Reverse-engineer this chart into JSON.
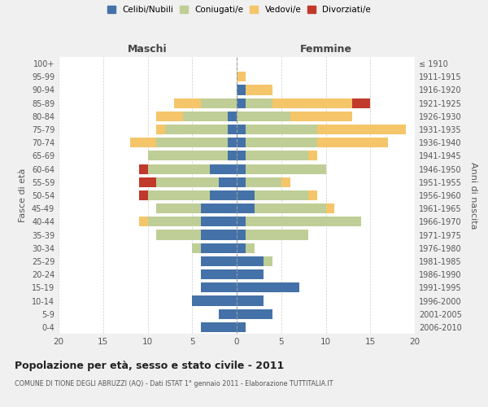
{
  "age_groups": [
    "0-4",
    "5-9",
    "10-14",
    "15-19",
    "20-24",
    "25-29",
    "30-34",
    "35-39",
    "40-44",
    "45-49",
    "50-54",
    "55-59",
    "60-64",
    "65-69",
    "70-74",
    "75-79",
    "80-84",
    "85-89",
    "90-94",
    "95-99",
    "100+"
  ],
  "birth_years": [
    "2006-2010",
    "2001-2005",
    "1996-2000",
    "1991-1995",
    "1986-1990",
    "1981-1985",
    "1976-1980",
    "1971-1975",
    "1966-1970",
    "1961-1965",
    "1956-1960",
    "1951-1955",
    "1946-1950",
    "1941-1945",
    "1936-1940",
    "1931-1935",
    "1926-1930",
    "1921-1925",
    "1916-1920",
    "1911-1915",
    "≤ 1910"
  ],
  "maschi": {
    "celibi": [
      4,
      2,
      5,
      4,
      4,
      4,
      4,
      4,
      4,
      4,
      3,
      2,
      3,
      1,
      1,
      1,
      1,
      0,
      0,
      0,
      0
    ],
    "coniugati": [
      0,
      0,
      0,
      0,
      0,
      0,
      1,
      5,
      6,
      5,
      7,
      7,
      7,
      9,
      8,
      7,
      5,
      4,
      0,
      0,
      0
    ],
    "vedovi": [
      0,
      0,
      0,
      0,
      0,
      0,
      0,
      0,
      1,
      0,
      0,
      0,
      0,
      0,
      3,
      1,
      3,
      3,
      0,
      0,
      0
    ],
    "divorziati": [
      0,
      0,
      0,
      0,
      0,
      0,
      0,
      0,
      0,
      0,
      1,
      2,
      1,
      0,
      0,
      0,
      0,
      0,
      0,
      0,
      0
    ]
  },
  "femmine": {
    "nubili": [
      1,
      4,
      3,
      7,
      3,
      3,
      1,
      1,
      1,
      2,
      2,
      1,
      1,
      1,
      1,
      1,
      0,
      1,
      1,
      0,
      0
    ],
    "coniugate": [
      0,
      0,
      0,
      0,
      0,
      1,
      1,
      7,
      13,
      8,
      6,
      4,
      9,
      7,
      8,
      8,
      6,
      3,
      0,
      0,
      0
    ],
    "vedove": [
      0,
      0,
      0,
      0,
      0,
      0,
      0,
      0,
      0,
      1,
      1,
      1,
      0,
      1,
      8,
      10,
      7,
      9,
      3,
      1,
      0
    ],
    "divorziate": [
      0,
      0,
      0,
      0,
      0,
      0,
      0,
      0,
      0,
      0,
      0,
      0,
      0,
      0,
      0,
      0,
      0,
      2,
      0,
      0,
      0
    ]
  },
  "colors": {
    "celibi_nubili": "#4472A8",
    "coniugati": "#BFCE96",
    "vedovi": "#F5C56A",
    "divorziati": "#C0392B"
  },
  "xlim": 20,
  "title": "Popolazione per età, sesso e stato civile - 2011",
  "subtitle": "COMUNE DI TIONE DEGLI ABRUZZI (AQ) - Dati ISTAT 1° gennaio 2011 - Elaborazione TUTTITALIA.IT",
  "ylabel_left": "Fasce di età",
  "ylabel_right": "Anni di nascita",
  "xlabel_maschi": "Maschi",
  "xlabel_femmine": "Femmine",
  "bg_color": "#f0f0f0",
  "plot_bg": "#ffffff"
}
